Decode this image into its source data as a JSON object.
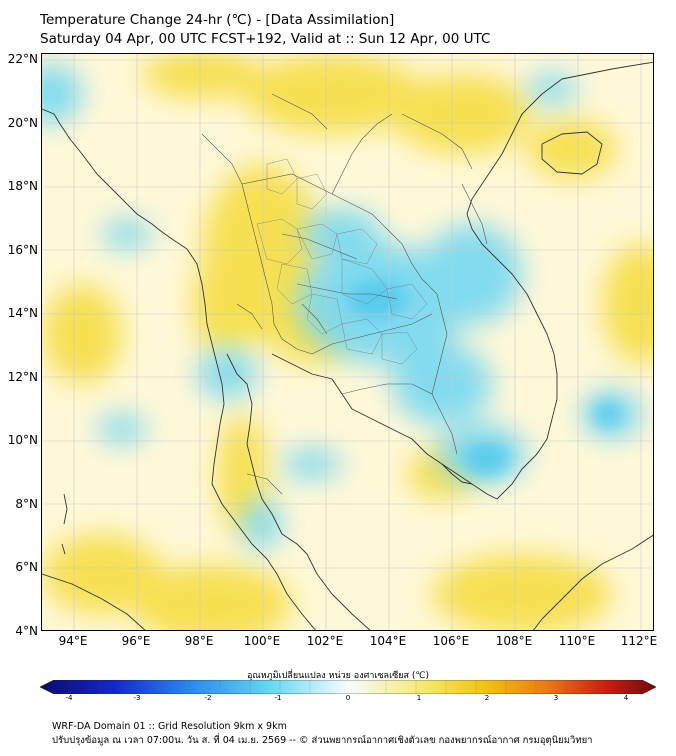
{
  "title": {
    "line1": "Temperature Change 24-hr (℃) - [Data Assimilation]",
    "line2": "Saturday 04 Apr, 00 UTC FCST+192, Valid at :: Sun 12 Apr, 00 UTC"
  },
  "map": {
    "lat_labels": [
      "22°N",
      "20°N",
      "18°N",
      "16°N",
      "14°N",
      "12°N",
      "10°N",
      "8°N",
      "6°N",
      "4°N"
    ],
    "lat_values": [
      22,
      20,
      18,
      16,
      14,
      12,
      10,
      8,
      6,
      4
    ],
    "lon_labels": [
      "94°E",
      "96°E",
      "98°E",
      "100°E",
      "102°E",
      "104°E",
      "106°E",
      "108°E",
      "110°E",
      "112°E"
    ],
    "lon_values": [
      94,
      96,
      98,
      100,
      102,
      104,
      106,
      108,
      110,
      112
    ],
    "extent": {
      "lon_min": 93,
      "lon_max": 112.5,
      "lat_min": 4,
      "lat_max": 22.2
    },
    "cool_color": "#5fd0f0",
    "warm_color": "#f2d21a"
  },
  "colorbar": {
    "title": "อุณหภูมิเปลี่ยนแปลง หน่วย องศาเซลเซียส (℃)",
    "ticks": [
      "-4",
      "-3",
      "-2",
      "-1",
      "0",
      "1",
      "2",
      "3",
      "4"
    ],
    "min": -4,
    "max": 4
  },
  "footer": {
    "line1": "WRF-DA Domain 01 :: Grid Resolution 9km x 9km",
    "line2": "ปรับปรุงข้อมูล ณ เวลา 07:00น. วัน ส. ที่ 04 เม.ย. 2569 -- © ส่วนพยากรณ์อากาศเชิงตัวเลข กองพยากรณ์อากาศ กรมอุตุนิยมวิทยา"
  }
}
